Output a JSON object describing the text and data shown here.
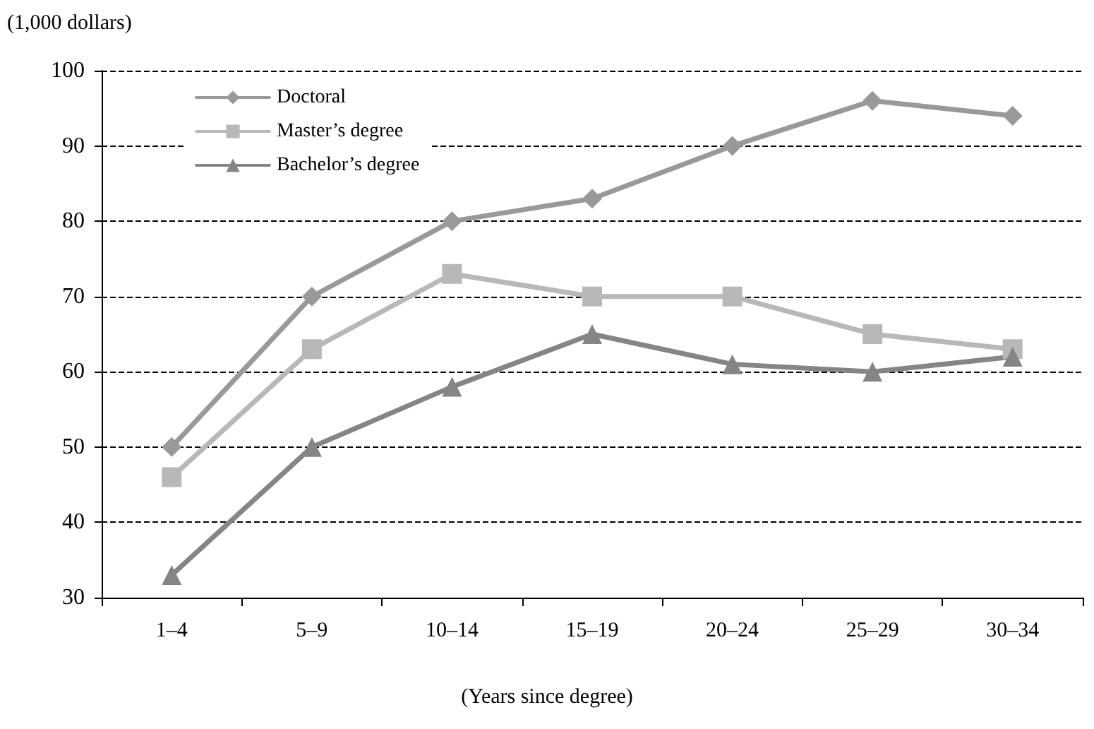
{
  "chart_data": {
    "type": "line",
    "ylabel": "(1,000 dollars)",
    "xlabel": "(Years since degree)",
    "categories": [
      "1–4",
      "5–9",
      "10–14",
      "15–19",
      "20–24",
      "25–29",
      "30–34"
    ],
    "series": [
      {
        "name": "Doctoral",
        "color": "#999999",
        "marker": "diamond",
        "values": [
          50,
          70,
          80,
          83,
          90,
          96,
          94
        ]
      },
      {
        "name": "Master’s degree",
        "color": "#b8b8b8",
        "marker": "square",
        "values": [
          46,
          63,
          73,
          70,
          70,
          65,
          63
        ]
      },
      {
        "name": "Bachelor’s degree",
        "color": "#858585",
        "marker": "triangle",
        "values": [
          33,
          50,
          58,
          65,
          61,
          60,
          62
        ]
      }
    ],
    "ylim": [
      30,
      100
    ],
    "yticks": [
      30,
      40,
      50,
      60,
      70,
      80,
      90,
      100
    ],
    "grid": "y",
    "legend": "top left",
    "line_style": "solid"
  }
}
